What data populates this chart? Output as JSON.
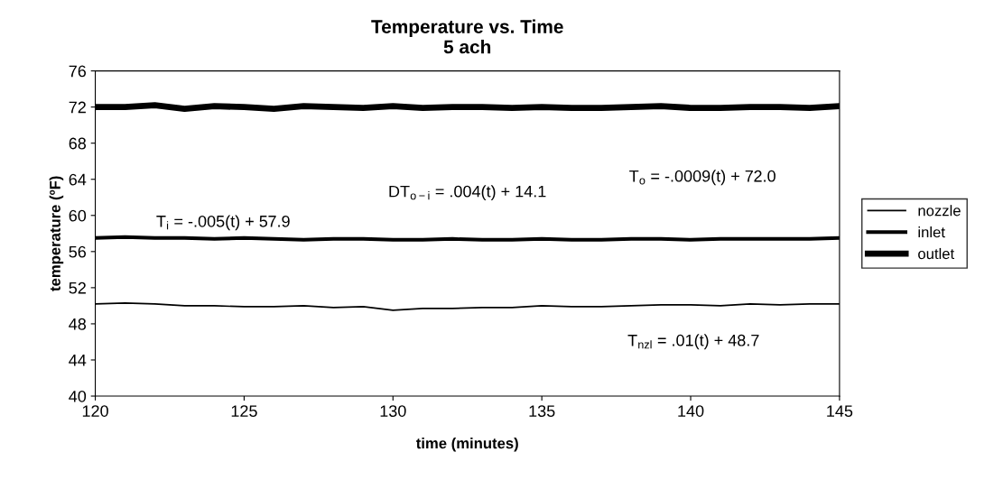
{
  "chart_data": {
    "type": "line",
    "title": "Temperature vs. Time\n5 ach",
    "xlabel": "time (minutes)",
    "ylabel": "temperature (ºF)",
    "x": [
      120,
      121,
      122,
      123,
      124,
      125,
      126,
      127,
      128,
      129,
      130,
      131,
      132,
      133,
      134,
      135,
      136,
      137,
      138,
      139,
      140,
      141,
      142,
      143,
      144,
      145
    ],
    "series": [
      {
        "name": "nozzle",
        "color": "#000000",
        "values": [
          50.2,
          50.3,
          50.2,
          50.0,
          50.0,
          49.9,
          49.9,
          50.0,
          49.8,
          49.9,
          49.5,
          49.7,
          49.7,
          49.8,
          49.8,
          50.0,
          49.9,
          49.9,
          50.0,
          50.1,
          50.1,
          50.0,
          50.2,
          50.1,
          50.2,
          50.2
        ]
      },
      {
        "name": "inlet",
        "color": "#000000",
        "values": [
          57.5,
          57.6,
          57.5,
          57.5,
          57.4,
          57.5,
          57.4,
          57.3,
          57.4,
          57.4,
          57.3,
          57.3,
          57.4,
          57.3,
          57.3,
          57.4,
          57.3,
          57.3,
          57.4,
          57.4,
          57.3,
          57.4,
          57.4,
          57.4,
          57.4,
          57.5
        ]
      },
      {
        "name": "outlet",
        "color": "#000000",
        "values": [
          72.0,
          72.0,
          72.2,
          71.8,
          72.1,
          72.0,
          71.8,
          72.1,
          72.0,
          71.9,
          72.1,
          71.9,
          72.0,
          72.0,
          71.9,
          72.0,
          71.9,
          71.9,
          72.0,
          72.1,
          71.9,
          71.9,
          72.0,
          72.0,
          71.9,
          72.1
        ]
      }
    ],
    "xlim": [
      120,
      145
    ],
    "xticks": [
      120,
      125,
      130,
      135,
      140,
      145
    ],
    "ylim": [
      40,
      76
    ],
    "yticks": [
      40,
      44,
      48,
      52,
      56,
      60,
      64,
      68,
      72,
      76
    ],
    "grid": false,
    "legend": "right",
    "marker": "none",
    "line_style": "solid",
    "annotations": [
      "T$_{o}$ = -.0009(t) + 72.0",
      "DT$_{o−i}$ = .004(t) + 14.1",
      "T$_{i}$ = -.005(t) + 57.9",
      "T$_{nzl}$ = .01(t) + 48.7"
    ]
  }
}
